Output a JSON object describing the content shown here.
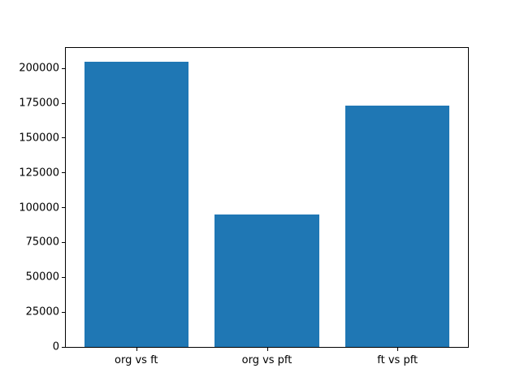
{
  "chart_data": {
    "type": "bar",
    "categories": [
      "org vs ft",
      "org vs pft",
      "ft vs pft"
    ],
    "values": [
      204500,
      95300,
      173400
    ],
    "title": "",
    "xlabel": "",
    "ylabel": "",
    "ylim": [
      0,
      214700
    ],
    "xlim": [
      -0.54,
      2.54
    ],
    "bar_width": 0.8,
    "yticks": [
      0,
      25000,
      50000,
      75000,
      100000,
      125000,
      150000,
      175000,
      200000
    ],
    "ytick_labels": [
      "0",
      "25000",
      "50000",
      "75000",
      "100000",
      "125000",
      "150000",
      "175000",
      "200000"
    ],
    "grid": false,
    "legend_position": "none",
    "bar_color": "#1f77b4"
  },
  "colors": {
    "background": "#ffffff",
    "axes_edge": "#000000",
    "tick_text": "#000000"
  }
}
